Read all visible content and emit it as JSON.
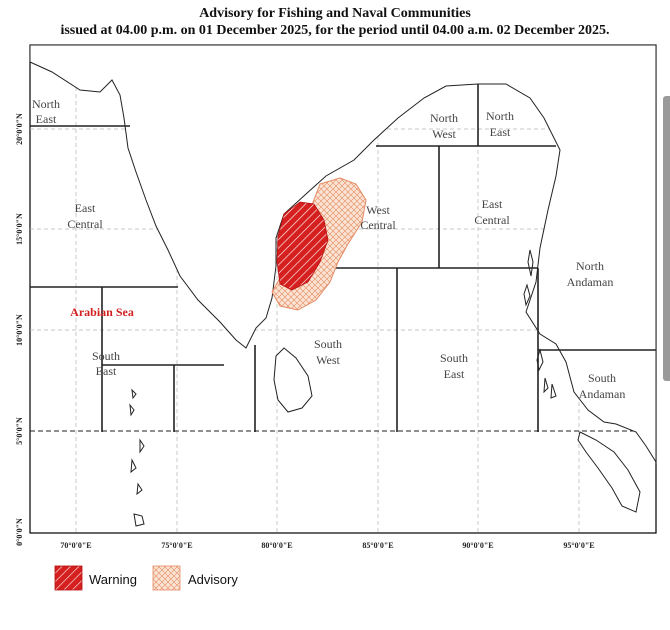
{
  "header": {
    "title": "Advisory for Fishing and Naval Communities",
    "subtitle": "issued at 04.00 p.m. on 01 December 2025, for the period until 04.00 a.m. 02 December 2025."
  },
  "map": {
    "longitude_labels": [
      "70°0'0\"E",
      "75°0'0\"E",
      "80°0'0\"E",
      "85°0'0\"E",
      "90°0'0\"E",
      "95°0'0\"E"
    ],
    "latitude_labels": [
      "0°0'0\"N",
      "5°0'0\"N",
      "10°0'0\"N",
      "15°0'0\"N",
      "20°0'0\"N"
    ],
    "regions": {
      "arabian_north_east": [
        "North",
        "East"
      ],
      "arabian_east_central": [
        "East",
        "Central"
      ],
      "arabian_south_east": [
        "South",
        "East"
      ],
      "bay_north_west": [
        "North",
        "West"
      ],
      "bay_north_east": [
        "North",
        "East"
      ],
      "bay_west_central": [
        "West",
        "Central"
      ],
      "bay_east_central": [
        "East",
        "Central"
      ],
      "bay_south_west": [
        "South",
        "West"
      ],
      "bay_south_east": [
        "South",
        "East"
      ],
      "north_andaman": [
        "North",
        "Andaman"
      ],
      "south_andaman": [
        "South",
        "Andaman"
      ]
    },
    "sea_label": "Arabian Sea",
    "colors": {
      "warning": "#d62020",
      "advisory": "#f4c9b0",
      "advisory_stroke": "#e48a62"
    }
  },
  "legend": {
    "warning_label": "Warning",
    "advisory_label": "Advisory"
  }
}
